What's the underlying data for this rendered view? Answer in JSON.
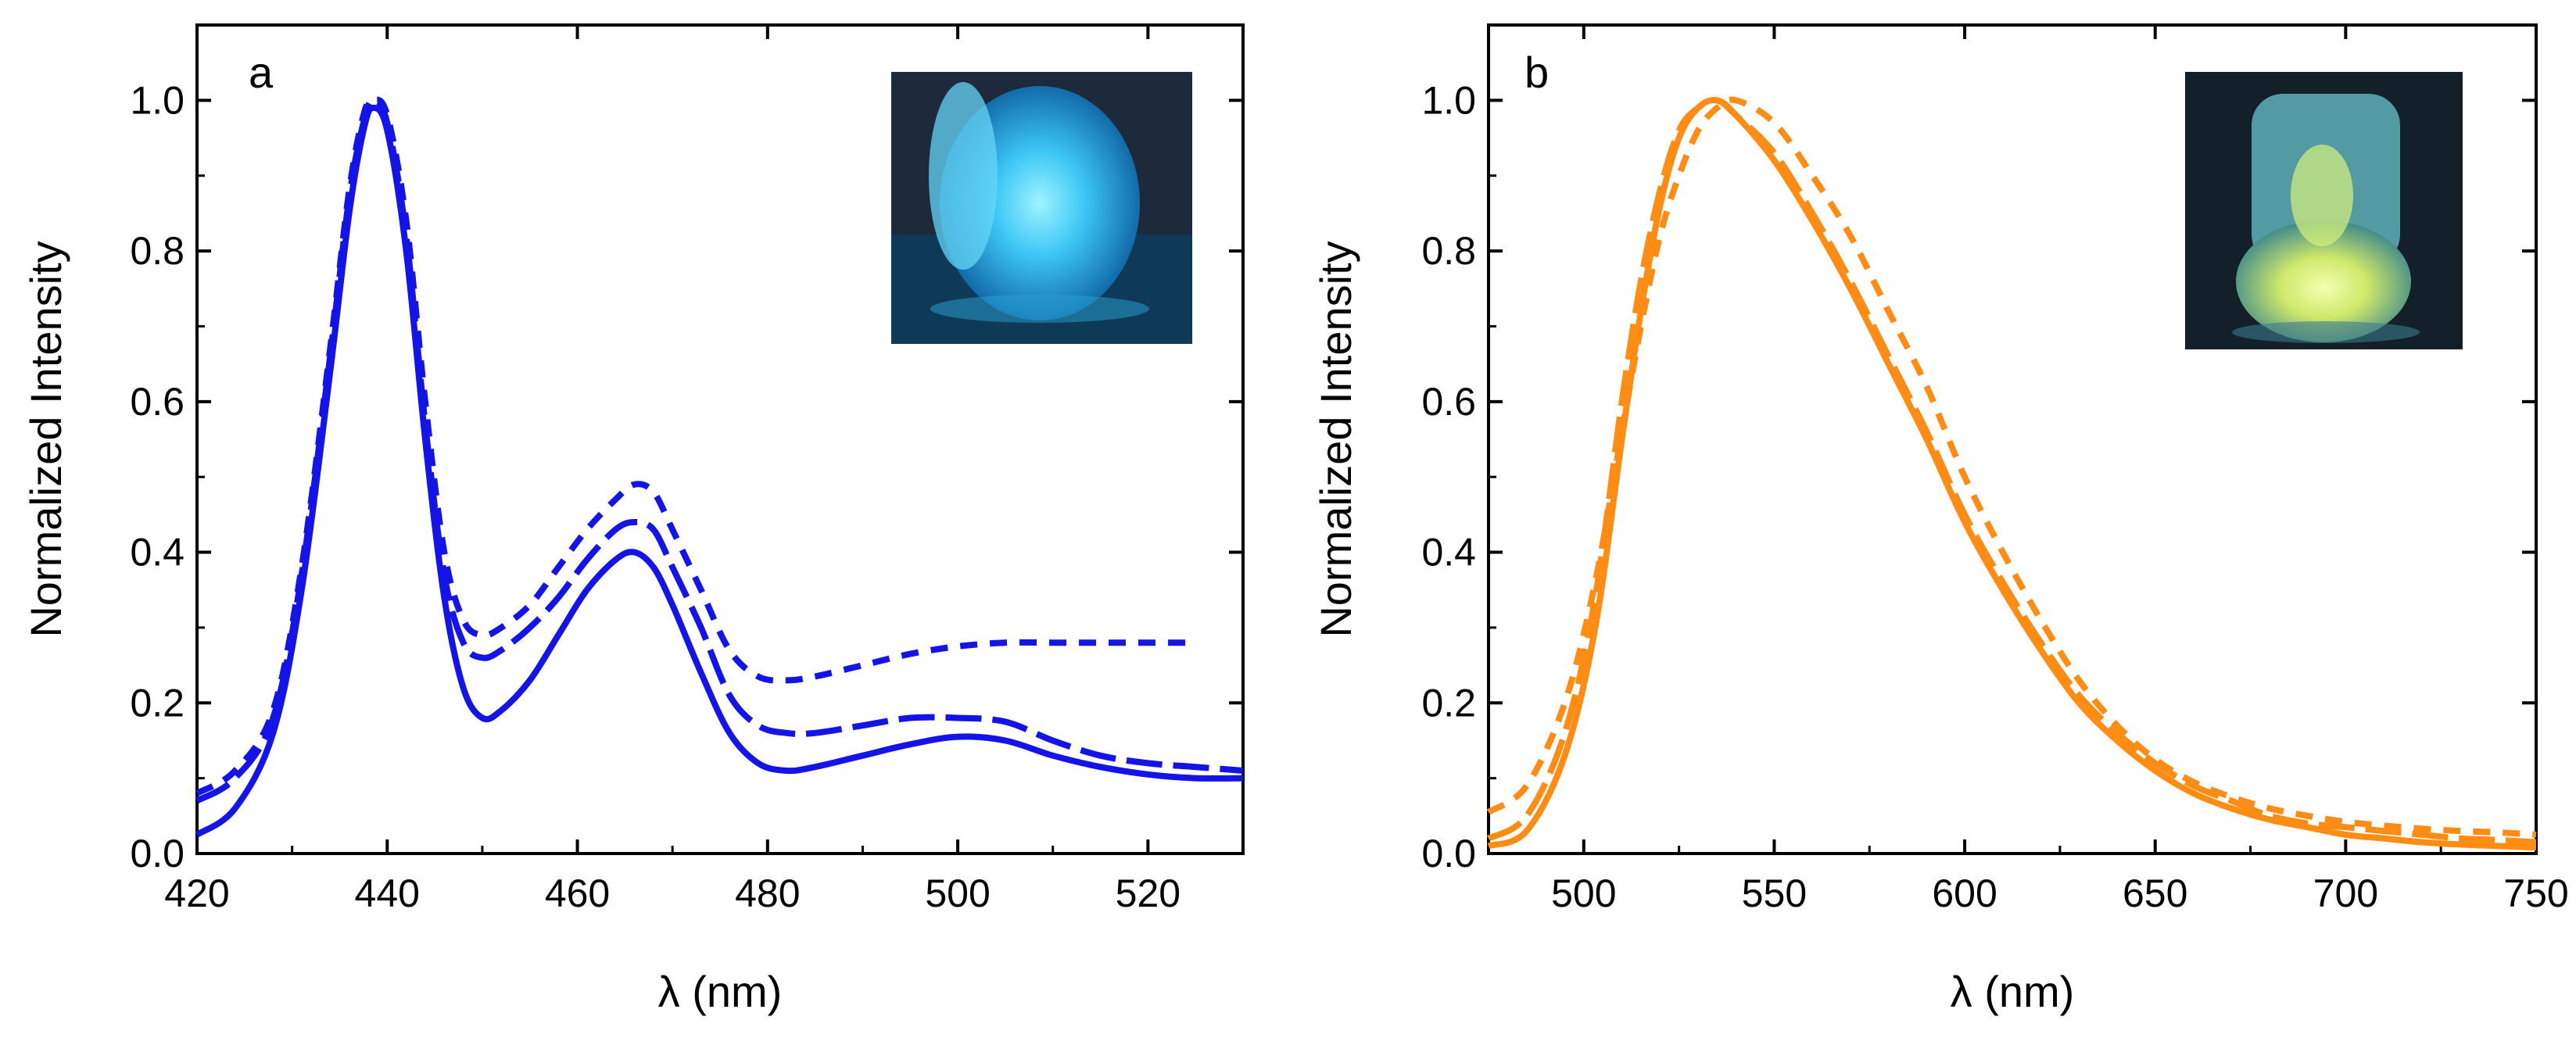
{
  "chart_data": [
    {
      "panel": "a",
      "type": "line",
      "color": "#1414e6",
      "xlabel": "λ (nm)",
      "ylabel": "Normalized Intensity",
      "xlim": [
        420,
        530
      ],
      "ylim": [
        0.0,
        1.1
      ],
      "xticks": [
        420,
        440,
        460,
        480,
        500,
        520
      ],
      "xtick_labels": [
        "420",
        "440",
        "460",
        "480",
        "500",
        "520"
      ],
      "yticks": [
        0.0,
        0.2,
        0.4,
        0.6,
        0.8,
        1.0
      ],
      "ytick_labels": [
        "0.0",
        "0.2",
        "0.4",
        "0.6",
        "0.8",
        "1.0"
      ],
      "grid": false,
      "inset": "photo of blue-emitting sample",
      "series": [
        {
          "name": "solid",
          "dash": "solid",
          "x": [
            420,
            424,
            428,
            431,
            434,
            436,
            437.5,
            438.5,
            440,
            442,
            444,
            446,
            448,
            450,
            452,
            455,
            458,
            461,
            464,
            466,
            468,
            470,
            473,
            476,
            479,
            482,
            485,
            490,
            495,
            500,
            505,
            510,
            515,
            520,
            525,
            530
          ],
          "y": [
            0.025,
            0.06,
            0.16,
            0.35,
            0.64,
            0.85,
            0.96,
            0.99,
            0.96,
            0.8,
            0.55,
            0.34,
            0.22,
            0.18,
            0.19,
            0.23,
            0.29,
            0.35,
            0.39,
            0.4,
            0.38,
            0.33,
            0.24,
            0.16,
            0.12,
            0.11,
            0.115,
            0.13,
            0.145,
            0.155,
            0.15,
            0.13,
            0.115,
            0.105,
            0.1,
            0.1
          ]
        },
        {
          "name": "long-dash",
          "dash": "long",
          "x": [
            420,
            424,
            428,
            431,
            434,
            436,
            437.5,
            438.5,
            440,
            442,
            444,
            446,
            448,
            450,
            452,
            455,
            458,
            461,
            464,
            466,
            468,
            470,
            473,
            476,
            479,
            482,
            485,
            490,
            495,
            500,
            505,
            510,
            515,
            520,
            525,
            530
          ],
          "y": [
            0.07,
            0.1,
            0.18,
            0.37,
            0.66,
            0.87,
            0.97,
            1.0,
            0.97,
            0.82,
            0.57,
            0.37,
            0.28,
            0.26,
            0.27,
            0.3,
            0.34,
            0.39,
            0.43,
            0.44,
            0.43,
            0.38,
            0.3,
            0.21,
            0.17,
            0.16,
            0.16,
            0.17,
            0.18,
            0.18,
            0.175,
            0.15,
            0.13,
            0.12,
            0.115,
            0.11
          ]
        },
        {
          "name": "short-dash",
          "dash": "short",
          "x": [
            420,
            424,
            428,
            431,
            434,
            436,
            437.5,
            438.5,
            440,
            442,
            444,
            446,
            448,
            450,
            452,
            455,
            458,
            461,
            464,
            466,
            468,
            470,
            473,
            476,
            479,
            482,
            485,
            490,
            495,
            500,
            505,
            510,
            515,
            520,
            525
          ],
          "y": [
            0.08,
            0.11,
            0.19,
            0.38,
            0.67,
            0.88,
            0.98,
            1.0,
            0.98,
            0.84,
            0.6,
            0.4,
            0.31,
            0.29,
            0.3,
            0.33,
            0.38,
            0.43,
            0.47,
            0.49,
            0.48,
            0.43,
            0.35,
            0.27,
            0.235,
            0.23,
            0.235,
            0.25,
            0.265,
            0.275,
            0.28,
            0.28,
            0.28,
            0.28,
            0.28
          ]
        }
      ]
    },
    {
      "panel": "b",
      "type": "line",
      "color": "#ff8c14",
      "xlabel": "λ (nm)",
      "ylabel": "Normalized Intensity",
      "xlim": [
        475,
        750
      ],
      "ylim": [
        0.0,
        1.1
      ],
      "xticks": [
        500,
        550,
        600,
        650,
        700,
        750
      ],
      "xtick_labels": [
        "500",
        "550",
        "600",
        "650",
        "700",
        "750"
      ],
      "yticks": [
        0.0,
        0.2,
        0.4,
        0.6,
        0.8,
        1.0
      ],
      "ytick_labels": [
        "0.0",
        "0.2",
        "0.4",
        "0.6",
        "0.8",
        "1.0"
      ],
      "grid": false,
      "inset": "photo of green-yellow emitting sample",
      "series": [
        {
          "name": "solid",
          "dash": "solid",
          "x": [
            475,
            485,
            495,
            503,
            510,
            515,
            520,
            525,
            530,
            535,
            540,
            550,
            560,
            570,
            580,
            590,
            600,
            610,
            620,
            630,
            640,
            650,
            660,
            670,
            680,
            690,
            700,
            710,
            720,
            730,
            740,
            750
          ],
          "y": [
            0.01,
            0.03,
            0.13,
            0.3,
            0.55,
            0.72,
            0.86,
            0.95,
            0.99,
            1.0,
            0.98,
            0.92,
            0.84,
            0.75,
            0.65,
            0.55,
            0.44,
            0.35,
            0.27,
            0.2,
            0.15,
            0.11,
            0.08,
            0.06,
            0.045,
            0.035,
            0.025,
            0.02,
            0.015,
            0.012,
            0.01,
            0.008
          ]
        },
        {
          "name": "long-dash",
          "dash": "long",
          "x": [
            475,
            485,
            495,
            503,
            510,
            515,
            520,
            525,
            530,
            535,
            540,
            550,
            560,
            570,
            580,
            590,
            600,
            610,
            620,
            630,
            640,
            650,
            660,
            670,
            680,
            690,
            700,
            710,
            720,
            730,
            740,
            750
          ],
          "y": [
            0.02,
            0.05,
            0.16,
            0.34,
            0.6,
            0.76,
            0.88,
            0.96,
            0.99,
            1.0,
            0.98,
            0.93,
            0.85,
            0.76,
            0.66,
            0.56,
            0.45,
            0.36,
            0.28,
            0.21,
            0.16,
            0.12,
            0.09,
            0.07,
            0.05,
            0.04,
            0.035,
            0.03,
            0.025,
            0.02,
            0.018,
            0.015
          ]
        },
        {
          "name": "short-dash",
          "dash": "short",
          "x": [
            475,
            485,
            495,
            503,
            510,
            515,
            520,
            525,
            530,
            535,
            540,
            550,
            560,
            570,
            580,
            590,
            600,
            610,
            620,
            630,
            640,
            650,
            660,
            670,
            680,
            690,
            700,
            710,
            720,
            730,
            740,
            750
          ],
          "y": [
            0.055,
            0.09,
            0.2,
            0.36,
            0.56,
            0.7,
            0.82,
            0.9,
            0.96,
            0.99,
            1.0,
            0.97,
            0.9,
            0.82,
            0.72,
            0.62,
            0.5,
            0.4,
            0.31,
            0.23,
            0.17,
            0.125,
            0.095,
            0.075,
            0.06,
            0.05,
            0.042,
            0.037,
            0.033,
            0.03,
            0.028,
            0.025
          ]
        }
      ]
    }
  ]
}
